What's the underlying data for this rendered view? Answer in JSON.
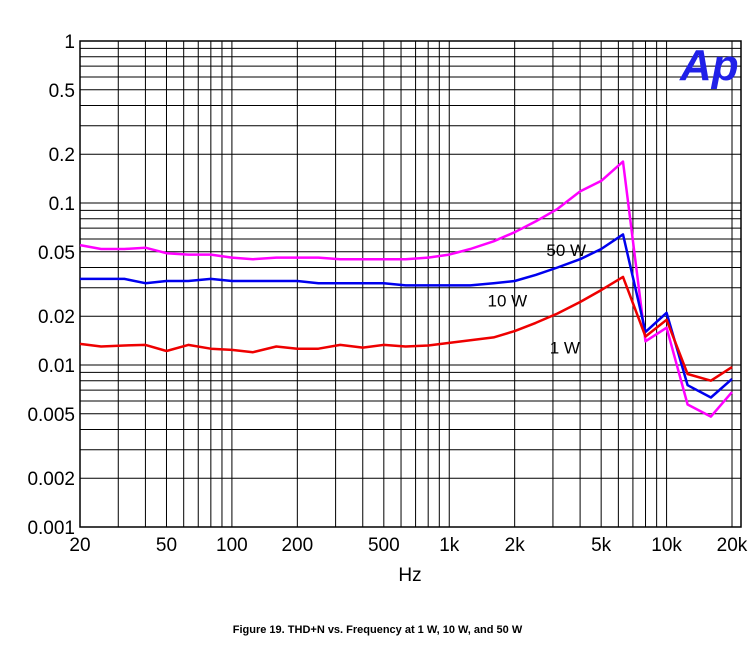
{
  "caption": "Figure 19.  THD+N vs. Frequency at 1 W, 10 W, and 50 W",
  "logo": {
    "text": "Ap",
    "color": "#2020e8"
  },
  "chart_data": {
    "type": "line",
    "xscale": "log",
    "yscale": "log",
    "xlim": [
      20,
      22000
    ],
    "ylim": [
      0.001,
      1
    ],
    "xlabel": "Hz",
    "ylabel": "",
    "grid": true,
    "x_tick_labels": [
      {
        "v": 20,
        "t": "20"
      },
      {
        "v": 50,
        "t": "50"
      },
      {
        "v": 100,
        "t": "100"
      },
      {
        "v": 200,
        "t": "200"
      },
      {
        "v": 500,
        "t": "500"
      },
      {
        "v": 1000,
        "t": "1k"
      },
      {
        "v": 2000,
        "t": "2k"
      },
      {
        "v": 5000,
        "t": "5k"
      },
      {
        "v": 10000,
        "t": "10k"
      },
      {
        "v": 20000,
        "t": "20k"
      }
    ],
    "y_tick_labels": [
      {
        "v": 1,
        "t": "1"
      },
      {
        "v": 0.5,
        "t": "0.5"
      },
      {
        "v": 0.2,
        "t": "0.2"
      },
      {
        "v": 0.1,
        "t": "0.1"
      },
      {
        "v": 0.05,
        "t": "0.05"
      },
      {
        "v": 0.02,
        "t": "0.02"
      },
      {
        "v": 0.01,
        "t": "0.01"
      },
      {
        "v": 0.005,
        "t": "0.005"
      },
      {
        "v": 0.002,
        "t": "0.002"
      },
      {
        "v": 0.001,
        "t": "0.001"
      }
    ],
    "series": [
      {
        "name": "50 W",
        "color": "#ff00ff",
        "label_at": [
          2800,
          0.047
        ],
        "points": [
          [
            20,
            0.055
          ],
          [
            25,
            0.052
          ],
          [
            32,
            0.052
          ],
          [
            40,
            0.053
          ],
          [
            50,
            0.049
          ],
          [
            63,
            0.048
          ],
          [
            80,
            0.048
          ],
          [
            100,
            0.046
          ],
          [
            125,
            0.045
          ],
          [
            160,
            0.046
          ],
          [
            200,
            0.046
          ],
          [
            250,
            0.046
          ],
          [
            315,
            0.045
          ],
          [
            400,
            0.045
          ],
          [
            500,
            0.045
          ],
          [
            630,
            0.045
          ],
          [
            800,
            0.046
          ],
          [
            1000,
            0.048
          ],
          [
            1250,
            0.052
          ],
          [
            1600,
            0.058
          ],
          [
            2000,
            0.066
          ],
          [
            2500,
            0.077
          ],
          [
            3150,
            0.092
          ],
          [
            4000,
            0.118
          ],
          [
            5000,
            0.137
          ],
          [
            6300,
            0.18
          ],
          [
            8000,
            0.014
          ],
          [
            10000,
            0.017
          ],
          [
            12500,
            0.0057
          ],
          [
            16000,
            0.0048
          ],
          [
            20000,
            0.0068
          ]
        ]
      },
      {
        "name": "10 W",
        "color": "#0000ee",
        "label_at": [
          1500,
          0.023
        ],
        "points": [
          [
            20,
            0.034
          ],
          [
            25,
            0.034
          ],
          [
            32,
            0.034
          ],
          [
            40,
            0.032
          ],
          [
            50,
            0.033
          ],
          [
            63,
            0.033
          ],
          [
            80,
            0.034
          ],
          [
            100,
            0.033
          ],
          [
            125,
            0.033
          ],
          [
            160,
            0.033
          ],
          [
            200,
            0.033
          ],
          [
            250,
            0.032
          ],
          [
            315,
            0.032
          ],
          [
            400,
            0.032
          ],
          [
            500,
            0.032
          ],
          [
            630,
            0.031
          ],
          [
            800,
            0.031
          ],
          [
            1000,
            0.031
          ],
          [
            1250,
            0.031
          ],
          [
            1600,
            0.032
          ],
          [
            2000,
            0.033
          ],
          [
            2500,
            0.036
          ],
          [
            3150,
            0.04
          ],
          [
            4000,
            0.045
          ],
          [
            5000,
            0.052
          ],
          [
            6300,
            0.064
          ],
          [
            8000,
            0.016
          ],
          [
            10000,
            0.021
          ],
          [
            12500,
            0.0075
          ],
          [
            16000,
            0.0063
          ],
          [
            20000,
            0.0082
          ]
        ]
      },
      {
        "name": "1 W",
        "color": "#ee0000",
        "label_at": [
          2900,
          0.0118
        ],
        "points": [
          [
            20,
            0.0135
          ],
          [
            25,
            0.013
          ],
          [
            32,
            0.0132
          ],
          [
            40,
            0.0133
          ],
          [
            50,
            0.0122
          ],
          [
            63,
            0.0133
          ],
          [
            80,
            0.0126
          ],
          [
            100,
            0.0124
          ],
          [
            125,
            0.012
          ],
          [
            160,
            0.013
          ],
          [
            200,
            0.0126
          ],
          [
            250,
            0.0126
          ],
          [
            315,
            0.0133
          ],
          [
            400,
            0.0128
          ],
          [
            500,
            0.0133
          ],
          [
            630,
            0.013
          ],
          [
            800,
            0.0132
          ],
          [
            1000,
            0.0137
          ],
          [
            1250,
            0.0142
          ],
          [
            1600,
            0.0148
          ],
          [
            2000,
            0.0162
          ],
          [
            2500,
            0.0182
          ],
          [
            3150,
            0.0208
          ],
          [
            4000,
            0.0245
          ],
          [
            5000,
            0.029
          ],
          [
            6300,
            0.035
          ],
          [
            8000,
            0.015
          ],
          [
            10000,
            0.019
          ],
          [
            12500,
            0.0088
          ],
          [
            16000,
            0.008
          ],
          [
            20000,
            0.0097
          ]
        ]
      }
    ]
  }
}
